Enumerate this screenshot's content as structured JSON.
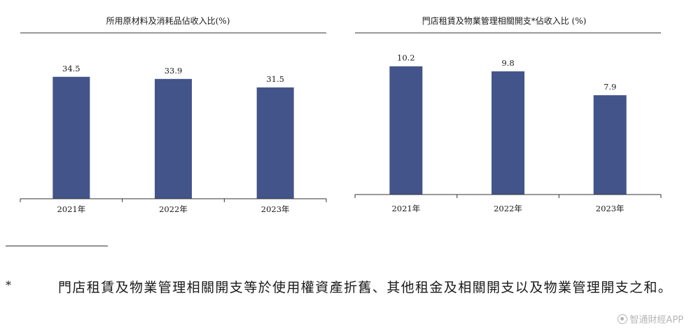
{
  "chart_data": [
    {
      "type": "bar",
      "title": "所用原材料及消耗品佔收入比(%)",
      "categories": [
        "2021年",
        "2022年",
        "2023年"
      ],
      "values": [
        34.5,
        33.9,
        31.5
      ],
      "value_labels": [
        "34.5",
        "33.9",
        "31.5"
      ],
      "xlabel": "",
      "ylabel": "",
      "ylim": [
        0,
        40
      ],
      "grid": false,
      "color": "#43548a"
    },
    {
      "type": "bar",
      "title": "門店租賃及物業管理相關開支*佔收入比 (%)",
      "categories": [
        "2021年",
        "2022年",
        "2023年"
      ],
      "values": [
        10.2,
        9.8,
        7.9
      ],
      "value_labels": [
        "10.2",
        "9.8",
        "7.9"
      ],
      "xlabel": "",
      "ylabel": "",
      "ylim": [
        0,
        11.8
      ],
      "grid": false,
      "color": "#43548a"
    }
  ],
  "footnote": {
    "marker": "*",
    "text": "門店租賃及物業管理相關開支等於使用權資產折舊、其他租金及相關開支以及物業管理開支之和。"
  },
  "watermark": {
    "text": "智通財經APP",
    "icon": "brand-logo-icon"
  }
}
